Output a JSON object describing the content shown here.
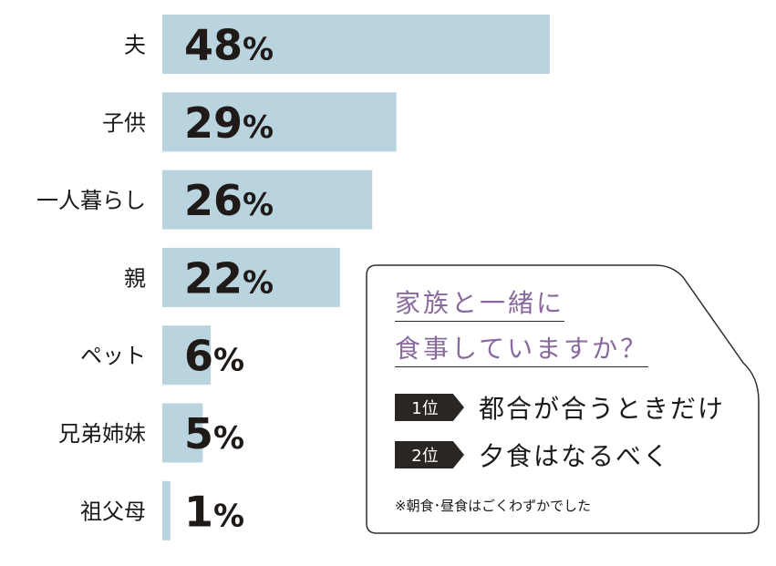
{
  "chart_data": {
    "type": "bar",
    "orientation": "horizontal",
    "categories": [
      "夫",
      "子供",
      "一人暮らし",
      "親",
      "ペット",
      "兄弟姉妹",
      "祖父母"
    ],
    "values": [
      48,
      29,
      26,
      22,
      6,
      5,
      1
    ],
    "value_unit": "%",
    "xlim": [
      0,
      48
    ],
    "bar_color": "#b9d4df",
    "text_color": "#1f1a17",
    "grid": false,
    "title": "",
    "xlabel": "",
    "ylabel": ""
  },
  "card": {
    "question_line1": "家族と一緒に",
    "question_line2": "食事していますか？",
    "rank1_label": "1位",
    "rank1_text": "都合が合うときだけ",
    "rank2_label": "2位",
    "rank2_text": "夕食はなるべく",
    "note": "※朝食･昼食はごくわずかでした",
    "question_color": "#8a6a9e",
    "badge_color": "#2a2624"
  }
}
